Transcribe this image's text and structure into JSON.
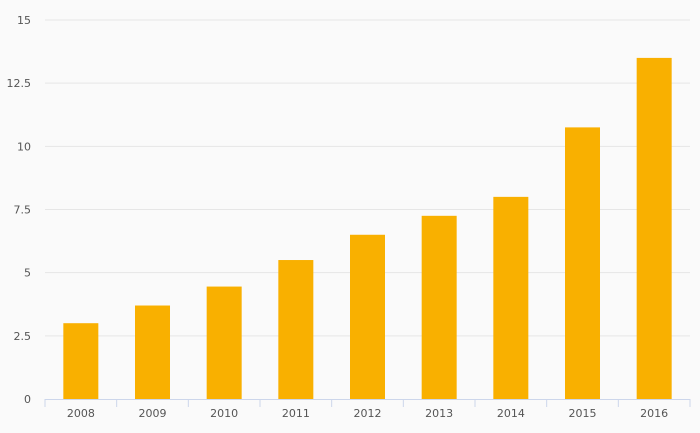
{
  "chart_data": {
    "type": "bar",
    "categories": [
      "2008",
      "2009",
      "2010",
      "2011",
      "2012",
      "2013",
      "2014",
      "2015",
      "2016"
    ],
    "values": [
      3.0,
      3.7,
      4.45,
      5.5,
      6.5,
      7.25,
      8.0,
      10.75,
      13.5
    ],
    "title": "",
    "xlabel": "",
    "ylabel": "",
    "ylim": [
      0,
      15
    ],
    "yticks": [
      "0",
      "2.5",
      "5",
      "7.5",
      "10",
      "12.5",
      "15"
    ],
    "grid": true,
    "legend": "none",
    "colors": {
      "bar": "#f9b000",
      "grid": "#e6e6e6",
      "axis": "#ccd6eb",
      "text": "#555555"
    }
  }
}
